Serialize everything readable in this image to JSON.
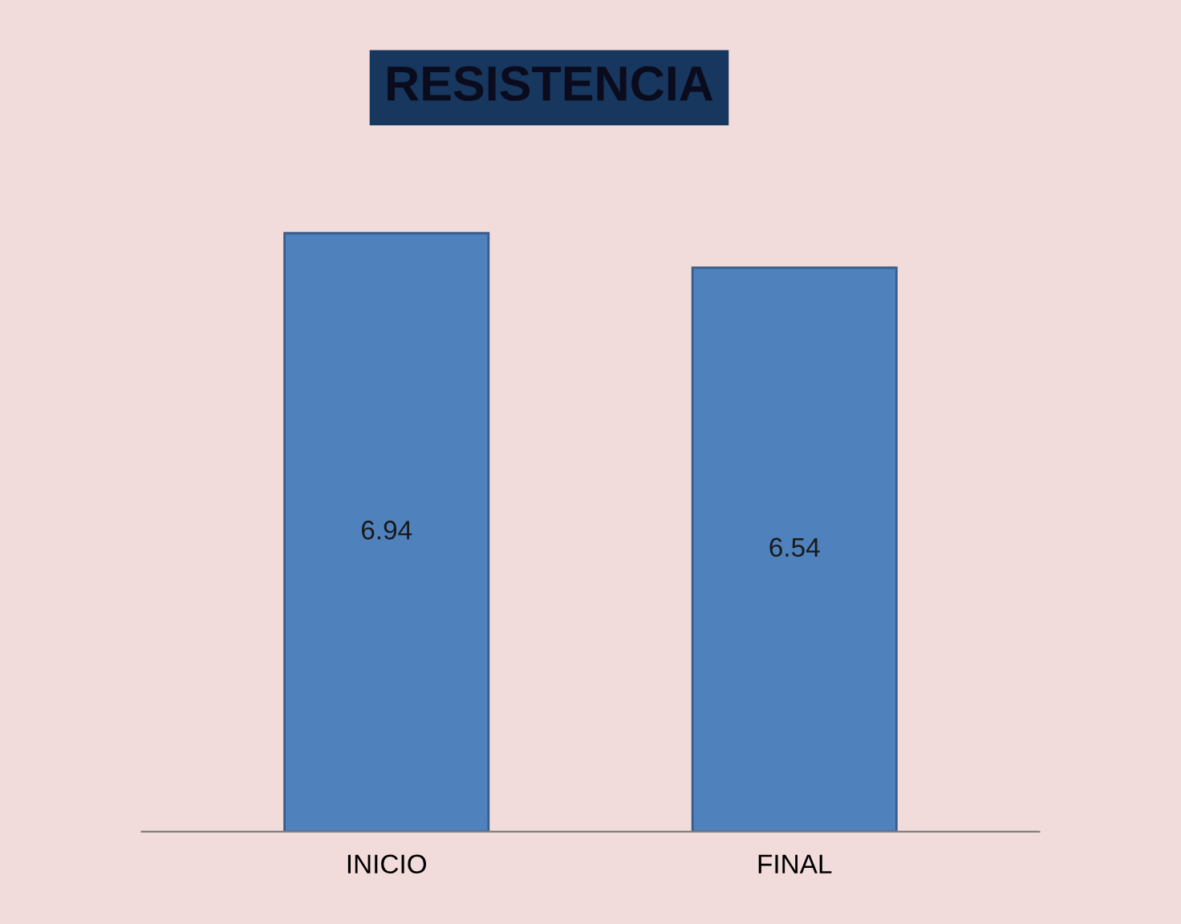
{
  "chart_data": {
    "type": "bar",
    "title": "RESISTENCIA",
    "categories": [
      "INICIO",
      "FINAL"
    ],
    "values": [
      6.94,
      6.54
    ],
    "color": "#4f81bd",
    "data_labels": true,
    "grid": false,
    "legend": false
  }
}
